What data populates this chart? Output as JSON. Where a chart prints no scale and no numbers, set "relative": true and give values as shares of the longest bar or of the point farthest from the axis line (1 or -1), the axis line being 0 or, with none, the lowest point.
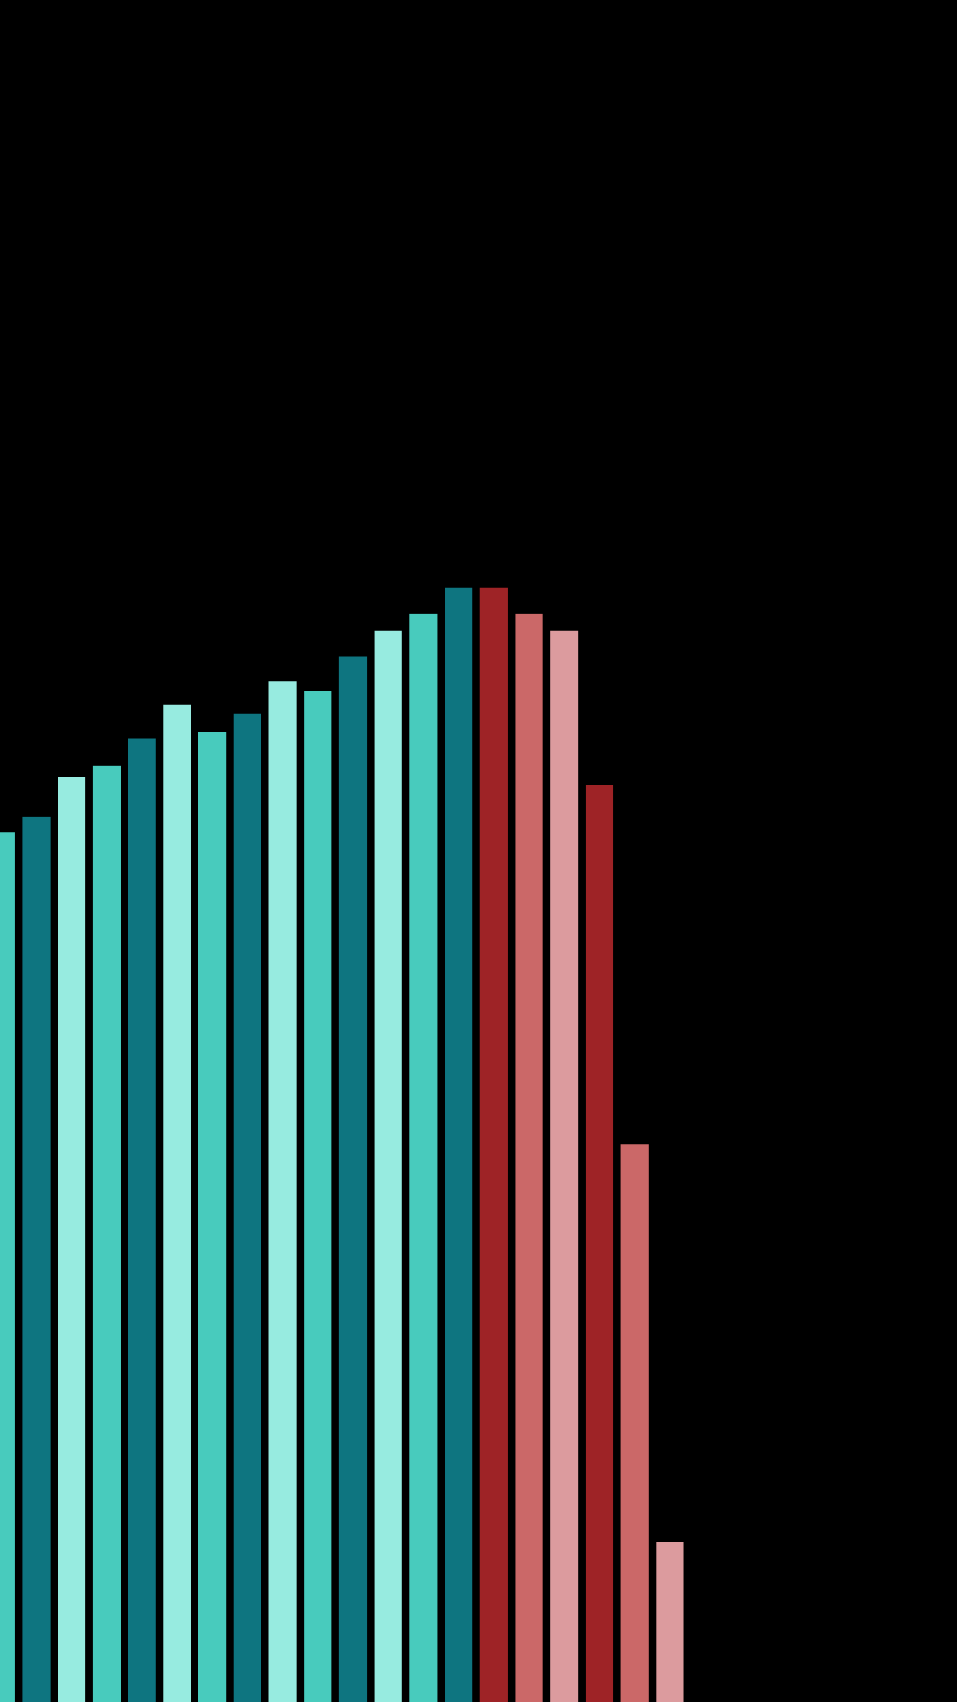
{
  "chart_data": {
    "type": "bar",
    "relative": true,
    "categories": [
      null,
      null,
      null,
      null,
      null,
      null,
      null,
      null,
      null,
      null,
      null,
      null,
      null,
      null,
      null,
      null,
      null,
      null,
      null,
      null
    ],
    "values": [
      0.78,
      0.794,
      0.83,
      0.84,
      0.864,
      0.895,
      0.87,
      0.887,
      0.916,
      0.907,
      0.938,
      0.961,
      0.976,
      1,
      1,
      0.976,
      0.961,
      0.823,
      0.5,
      0.144
    ],
    "colors": [
      "#48cbbd",
      "#0e7580",
      "#97ebe0",
      "#48cbbd",
      "#0e7580",
      "#97ebe0",
      "#48cbbd",
      "#0e7580",
      "#97ebe0",
      "#48cbbd",
      "#0e7580",
      "#97ebe0",
      "#48cbbd",
      "#0e7580",
      "#9e2326",
      "#cb6868",
      "#dc9b9e",
      "#9e2326",
      "#cb6868",
      "#dc9b9e"
    ]
  }
}
